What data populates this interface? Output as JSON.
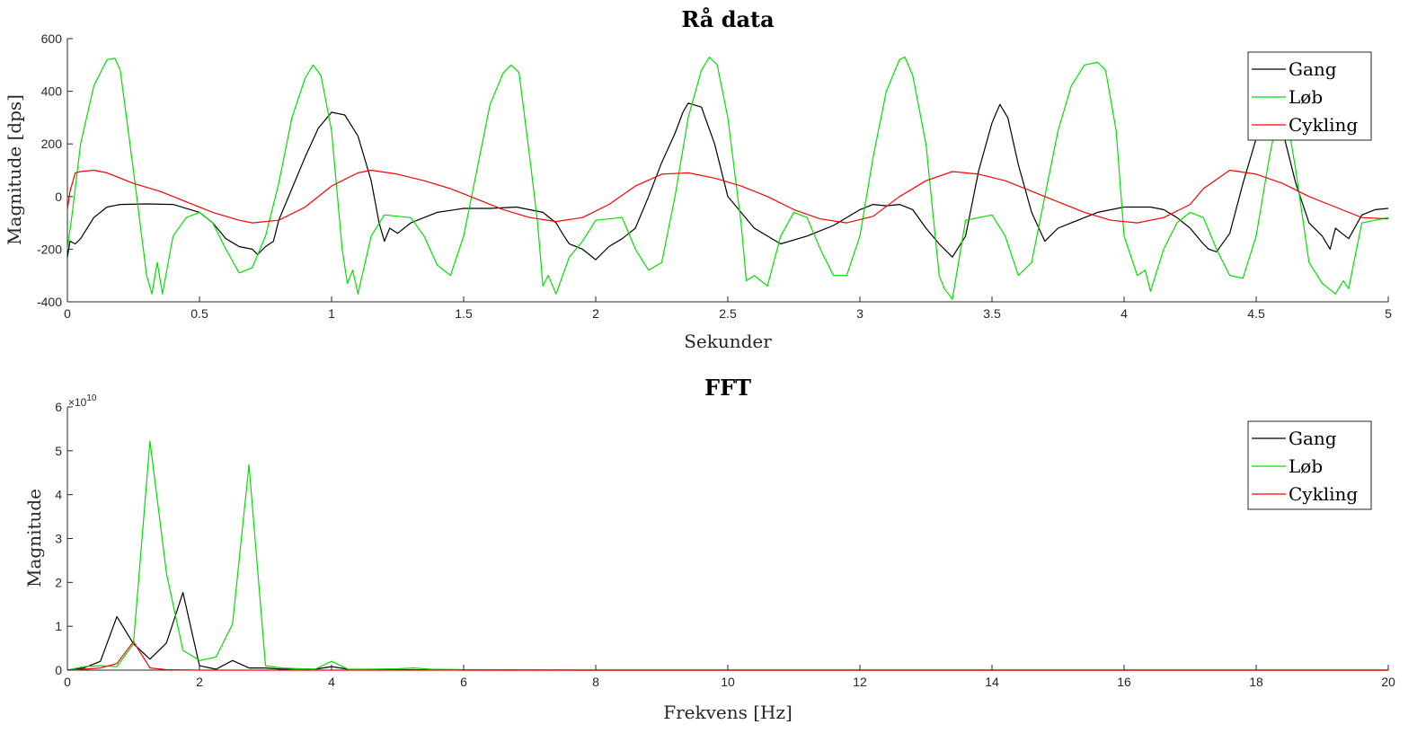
{
  "chart_data": [
    {
      "type": "line",
      "title": "Rå data",
      "xlabel": "Sekunder",
      "ylabel": "Magnitude [dps]",
      "xlim": [
        0,
        5
      ],
      "ylim": [
        -400,
        600
      ],
      "xticks": [
        0,
        0.5,
        1,
        1.5,
        2,
        2.5,
        3,
        3.5,
        4,
        4.5,
        5
      ],
      "xticklabels": [
        "0",
        "0.5",
        "1",
        "1.5",
        "2",
        "2.5",
        "3",
        "3.5",
        "4",
        "4.5",
        "5"
      ],
      "yticks": [
        -400,
        -200,
        0,
        200,
        400,
        600
      ],
      "yticklabels": [
        "-400",
        "-200",
        "0",
        "200",
        "400",
        "600"
      ],
      "legend_position": "top-right",
      "grid": false,
      "series": [
        {
          "name": "Gang",
          "color": "#000000",
          "x": [
            0,
            0.01,
            0.03,
            0.05,
            0.1,
            0.15,
            0.2,
            0.3,
            0.4,
            0.5,
            0.55,
            0.6,
            0.65,
            0.7,
            0.72,
            0.75,
            0.78,
            0.8,
            0.85,
            0.9,
            0.95,
            1.0,
            1.05,
            1.1,
            1.15,
            1.18,
            1.2,
            1.22,
            1.25,
            1.3,
            1.35,
            1.4,
            1.5,
            1.6,
            1.7,
            1.8,
            1.85,
            1.88,
            1.9,
            1.95,
            2.0,
            2.05,
            2.1,
            2.15,
            2.2,
            2.25,
            2.3,
            2.33,
            2.35,
            2.4,
            2.45,
            2.5,
            2.6,
            2.7,
            2.8,
            2.9,
            3.0,
            3.05,
            3.1,
            3.15,
            3.2,
            3.25,
            3.3,
            3.35,
            3.4,
            3.45,
            3.5,
            3.53,
            3.56,
            3.6,
            3.65,
            3.7,
            3.75,
            3.8,
            3.9,
            4.0,
            4.1,
            4.15,
            4.2,
            4.25,
            4.3,
            4.32,
            4.35,
            4.4,
            4.45,
            4.5,
            4.55,
            4.6,
            4.65,
            4.7,
            4.75,
            4.78,
            4.8,
            4.85,
            4.9,
            4.95,
            5.0
          ],
          "y": [
            -230,
            -170,
            -180,
            -160,
            -80,
            -40,
            -30,
            -28,
            -30,
            -60,
            -100,
            -160,
            -190,
            -200,
            -220,
            -190,
            -170,
            -90,
            30,
            150,
            260,
            320,
            310,
            230,
            60,
            -100,
            -170,
            -120,
            -140,
            -100,
            -80,
            -60,
            -45,
            -45,
            -40,
            -60,
            -100,
            -150,
            -180,
            -200,
            -240,
            -190,
            -160,
            -120,
            0,
            130,
            240,
            320,
            355,
            340,
            200,
            0,
            -120,
            -180,
            -150,
            -110,
            -50,
            -30,
            -35,
            -30,
            -50,
            -120,
            -180,
            -230,
            -150,
            100,
            280,
            350,
            300,
            120,
            -60,
            -170,
            -120,
            -100,
            -60,
            -40,
            -40,
            -50,
            -80,
            -120,
            -180,
            -200,
            -210,
            -140,
            50,
            220,
            320,
            250,
            50,
            -100,
            -150,
            -200,
            -120,
            -160,
            -70,
            -50,
            -45
          ]
        },
        {
          "name": "Løb",
          "color": "#00e000",
          "x": [
            0,
            0.02,
            0.05,
            0.1,
            0.15,
            0.18,
            0.2,
            0.25,
            0.3,
            0.32,
            0.34,
            0.36,
            0.4,
            0.45,
            0.5,
            0.55,
            0.6,
            0.65,
            0.7,
            0.75,
            0.8,
            0.85,
            0.9,
            0.93,
            0.96,
            1.0,
            1.04,
            1.06,
            1.08,
            1.1,
            1.15,
            1.2,
            1.3,
            1.35,
            1.4,
            1.45,
            1.5,
            1.55,
            1.6,
            1.65,
            1.68,
            1.71,
            1.75,
            1.78,
            1.8,
            1.82,
            1.85,
            1.9,
            1.95,
            2.0,
            2.1,
            2.15,
            2.2,
            2.25,
            2.3,
            2.35,
            2.4,
            2.43,
            2.46,
            2.5,
            2.55,
            2.57,
            2.6,
            2.65,
            2.7,
            2.75,
            2.8,
            2.85,
            2.9,
            2.95,
            3.0,
            3.05,
            3.1,
            3.15,
            3.17,
            3.2,
            3.25,
            3.28,
            3.3,
            3.32,
            3.35,
            3.4,
            3.5,
            3.55,
            3.6,
            3.65,
            3.7,
            3.75,
            3.8,
            3.85,
            3.9,
            3.93,
            3.97,
            4.0,
            4.05,
            4.08,
            4.1,
            4.15,
            4.2,
            4.25,
            4.3,
            4.35,
            4.4,
            4.45,
            4.5,
            4.55,
            4.6,
            4.65,
            4.7,
            4.75,
            4.8,
            4.83,
            4.85,
            4.9,
            4.95,
            5.0
          ],
          "y": [
            -200,
            -50,
            200,
            420,
            520,
            525,
            480,
            100,
            -300,
            -370,
            -250,
            -370,
            -150,
            -80,
            -60,
            -100,
            -200,
            -290,
            -270,
            -150,
            50,
            300,
            450,
            500,
            460,
            250,
            -200,
            -330,
            -280,
            -370,
            -150,
            -70,
            -80,
            -150,
            -260,
            -300,
            -150,
            100,
            350,
            470,
            500,
            470,
            150,
            -100,
            -340,
            -300,
            -370,
            -230,
            -170,
            -90,
            -80,
            -200,
            -280,
            -250,
            0,
            300,
            480,
            530,
            500,
            300,
            -100,
            -320,
            -300,
            -340,
            -150,
            -60,
            -80,
            -200,
            -300,
            -300,
            -150,
            150,
            400,
            520,
            530,
            460,
            200,
            -100,
            -300,
            -350,
            -390,
            -90,
            -70,
            -150,
            -300,
            -250,
            0,
            250,
            420,
            500,
            510,
            480,
            250,
            -150,
            -300,
            -280,
            -360,
            -200,
            -100,
            -60,
            -80,
            -200,
            -300,
            -310,
            -150,
            150,
            400,
            100,
            -250,
            -330,
            -370,
            -320,
            -350,
            -100,
            -90,
            -80
          ]
        },
        {
          "name": "Cykling",
          "color": "#ff0000",
          "x": [
            0,
            0.01,
            0.03,
            0.05,
            0.1,
            0.15,
            0.25,
            0.35,
            0.45,
            0.55,
            0.65,
            0.7,
            0.8,
            0.9,
            1.0,
            1.1,
            1.15,
            1.25,
            1.35,
            1.45,
            1.55,
            1.65,
            1.75,
            1.85,
            1.95,
            2.05,
            2.15,
            2.25,
            2.35,
            2.45,
            2.55,
            2.65,
            2.75,
            2.85,
            2.95,
            3.05,
            3.15,
            3.25,
            3.35,
            3.45,
            3.55,
            3.65,
            3.75,
            3.85,
            3.95,
            4.05,
            4.15,
            4.25,
            4.3,
            4.4,
            4.5,
            4.6,
            4.7,
            4.8,
            4.9,
            5.0
          ],
          "y": [
            -50,
            20,
            90,
            95,
            100,
            90,
            50,
            20,
            -20,
            -60,
            -90,
            -100,
            -90,
            -40,
            40,
            90,
            100,
            85,
            60,
            30,
            -10,
            -50,
            -80,
            -95,
            -80,
            -30,
            40,
            85,
            90,
            70,
            40,
            0,
            -50,
            -85,
            -100,
            -75,
            0,
            60,
            95,
            85,
            60,
            20,
            -20,
            -60,
            -90,
            -100,
            -80,
            -30,
            30,
            100,
            85,
            50,
            0,
            -40,
            -80,
            -85
          ]
        }
      ]
    },
    {
      "type": "line",
      "title": "FFT",
      "xlabel": "Frekvens [Hz]",
      "ylabel": "Magnitude",
      "xlim": [
        0,
        20
      ],
      "ylim": [
        0,
        6
      ],
      "y_exponent_label": "× 10^10",
      "xticks": [
        0,
        2,
        4,
        6,
        8,
        10,
        12,
        14,
        16,
        18,
        20
      ],
      "xticklabels": [
        "0",
        "2",
        "4",
        "6",
        "8",
        "10",
        "12",
        "14",
        "16",
        "18",
        "20"
      ],
      "yticks": [
        0,
        1,
        2,
        3,
        4,
        5,
        6
      ],
      "yticklabels": [
        "0",
        "1",
        "2",
        "3",
        "4",
        "5",
        "6"
      ],
      "legend_position": "top-right",
      "grid": false,
      "series": [
        {
          "name": "Gang",
          "color": "#000000",
          "x": [
            0,
            0.25,
            0.5,
            0.75,
            1.0,
            1.25,
            1.5,
            1.75,
            2.0,
            2.25,
            2.5,
            2.75,
            3.0,
            3.25,
            3.5,
            3.75,
            4.0,
            4.25,
            4.5,
            5,
            6,
            8,
            10,
            12,
            14,
            16,
            18,
            20
          ],
          "y": [
            0,
            0.05,
            0.2,
            1.22,
            0.6,
            0.25,
            0.62,
            1.77,
            0.1,
            0.02,
            0.22,
            0.05,
            0.05,
            0.02,
            0.03,
            0.02,
            0.08,
            0.02,
            0.01,
            0.01,
            0,
            0,
            0,
            0,
            0,
            0,
            0,
            0
          ]
        },
        {
          "name": "Løb",
          "color": "#00e000",
          "x": [
            0,
            0.25,
            0.5,
            0.75,
            1.0,
            1.25,
            1.5,
            1.75,
            2.0,
            2.25,
            2.5,
            2.75,
            3.0,
            3.25,
            3.5,
            3.75,
            4.0,
            4.25,
            4.5,
            5.0,
            5.25,
            5.5,
            6,
            8,
            10,
            12,
            14,
            16,
            18,
            20
          ],
          "y": [
            0,
            0.08,
            0.1,
            0.08,
            0.6,
            5.22,
            2.2,
            0.45,
            0.22,
            0.3,
            1.05,
            4.68,
            0.1,
            0.05,
            0.03,
            0.02,
            0.2,
            0.02,
            0.02,
            0.03,
            0.05,
            0.02,
            0.01,
            0,
            0,
            0,
            0,
            0,
            0,
            0
          ]
        },
        {
          "name": "Cykling",
          "color": "#ff0000",
          "x": [
            0,
            0.25,
            0.5,
            0.75,
            1.0,
            1.25,
            1.5,
            2,
            4,
            6,
            8,
            10,
            12,
            14,
            16,
            18,
            20
          ],
          "y": [
            0,
            0.02,
            0.05,
            0.15,
            0.65,
            0.05,
            0.01,
            0,
            0,
            0,
            0,
            0,
            0,
            0,
            0,
            0,
            0
          ]
        }
      ]
    }
  ]
}
